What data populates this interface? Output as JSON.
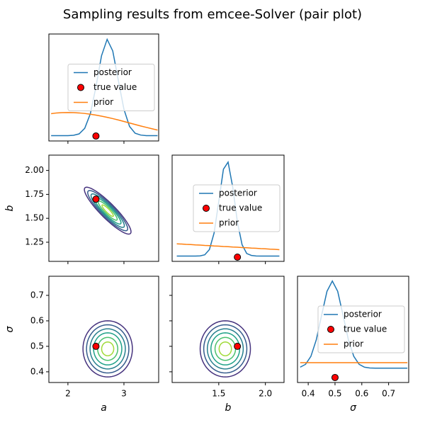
{
  "title": "Sampling results from emcee-Solver (pair plot)",
  "chart_data": [
    {
      "type": "density",
      "xlim": [
        1.66,
        3.62
      ],
      "ylim": [
        0,
        1
      ],
      "legend_loc": "center right",
      "x": [
        1.7,
        1.8,
        1.9,
        2.0,
        2.1,
        2.2,
        2.3,
        2.4,
        2.5,
        2.6,
        2.7,
        2.8,
        2.9,
        3.0,
        3.1,
        3.2,
        3.3,
        3.4,
        3.5,
        3.6
      ],
      "series": [
        {
          "name": "posterior",
          "color": "#1f77b4",
          "values": [
            0.05,
            0.05,
            0.05,
            0.05,
            0.053,
            0.066,
            0.118,
            0.254,
            0.505,
            0.797,
            0.95,
            0.842,
            0.566,
            0.296,
            0.136,
            0.072,
            0.055,
            0.05,
            0.05,
            0.05
          ]
        },
        {
          "name": "true value",
          "type": "scatter",
          "color": "#ff0000",
          "x": [
            2.5
          ],
          "values": [
            0.046
          ]
        },
        {
          "name": "prior",
          "color": "#ff7f0e",
          "values": [
            0.255,
            0.262,
            0.265,
            0.266,
            0.265,
            0.262,
            0.257,
            0.25,
            0.242,
            0.232,
            0.221,
            0.209,
            0.196,
            0.182,
            0.168,
            0.154,
            0.14,
            0.127,
            0.114,
            0.102
          ]
        }
      ]
    },
    {
      "type": "contour",
      "xlim": [
        1.66,
        3.62
      ],
      "ylim": [
        1.05,
        2.16
      ],
      "yticks": [
        1.25,
        {
          "value": 1.5,
          "label": "1.50"
        },
        1.75,
        {
          "value": 2,
          "label": "2.00"
        }
      ],
      "ylabel": "b",
      "mean": [
        2.71,
        1.58
      ],
      "sd": [
        0.17,
        0.1
      ],
      "rho": -0.9,
      "levels": [
        {
          "radius": 2.45,
          "color": "#46337e"
        },
        {
          "radius": 2.1,
          "color": "#365c8d"
        },
        {
          "radius": 1.75,
          "color": "#277f8e"
        },
        {
          "radius": 1.4,
          "color": "#1fa187"
        },
        {
          "radius": 1.0,
          "color": "#4ac16d"
        },
        {
          "radius": 0.6,
          "color": "#a0da39"
        }
      ],
      "points": {
        "x": [
          2.5
        ],
        "values": [
          1.7
        ],
        "color": "#ff0000"
      }
    },
    {
      "type": "density",
      "xlim": [
        1.0,
        2.2
      ],
      "ylim": [
        0,
        1
      ],
      "legend_loc": "center right",
      "x": [
        1.05,
        1.1,
        1.15,
        1.2,
        1.25,
        1.3,
        1.35,
        1.4,
        1.45,
        1.5,
        1.55,
        1.6,
        1.65,
        1.7,
        1.75,
        1.8,
        1.85,
        1.9,
        1.95,
        2.0,
        2.05,
        2.1,
        2.15
      ],
      "series": [
        {
          "name": "posterior",
          "color": "#1f77b4",
          "values": [
            0.05,
            0.05,
            0.05,
            0.05,
            0.05,
            0.052,
            0.062,
            0.112,
            0.267,
            0.563,
            0.867,
            0.934,
            0.698,
            0.371,
            0.157,
            0.074,
            0.056,
            0.051,
            0.05,
            0.05,
            0.05,
            0.05,
            0.05
          ]
        },
        {
          "name": "true value",
          "type": "scatter",
          "color": "#ff0000",
          "x": [
            1.7
          ],
          "values": [
            0.04
          ]
        },
        {
          "name": "prior",
          "color": "#ff7f0e",
          "values": [
            0.165,
            0.163,
            0.16,
            0.158,
            0.155,
            0.153,
            0.15,
            0.148,
            0.145,
            0.143,
            0.14,
            0.138,
            0.135,
            0.133,
            0.13,
            0.128,
            0.125,
            0.123,
            0.12,
            0.118,
            0.115,
            0.113,
            0.11
          ]
        }
      ]
    },
    {
      "type": "contour",
      "xlim": [
        1.66,
        3.62
      ],
      "ylim": [
        0.358,
        0.775
      ],
      "xticks": [
        2,
        3
      ],
      "yticks": [
        0.4,
        0.5,
        0.6,
        0.7
      ],
      "xlabel": "a",
      "ylabel": "σ",
      "mean": [
        2.71,
        0.49
      ],
      "sd": [
        0.18,
        0.045
      ],
      "rho": 0,
      "levels": [
        {
          "radius": 2.45,
          "color": "#46337e"
        },
        {
          "radius": 2.1,
          "color": "#365c8d"
        },
        {
          "radius": 1.75,
          "color": "#277f8e"
        },
        {
          "radius": 1.4,
          "color": "#1fa187"
        },
        {
          "radius": 1.0,
          "color": "#4ac16d"
        },
        {
          "radius": 0.6,
          "color": "#a0da39"
        }
      ],
      "points": {
        "x": [
          2.5
        ],
        "values": [
          0.5
        ],
        "color": "#ff0000"
      }
    },
    {
      "type": "contour",
      "xlim": [
        1.0,
        2.2
      ],
      "ylim": [
        0.358,
        0.775
      ],
      "xticks": [
        1.5,
        {
          "value": 2,
          "label": "2.0"
        }
      ],
      "xlabel": "b",
      "mean": [
        1.57,
        0.49
      ],
      "sd": [
        0.11,
        0.045
      ],
      "rho": 0,
      "levels": [
        {
          "radius": 2.45,
          "color": "#46337e"
        },
        {
          "radius": 2.1,
          "color": "#365c8d"
        },
        {
          "radius": 1.75,
          "color": "#277f8e"
        },
        {
          "radius": 1.4,
          "color": "#1fa187"
        },
        {
          "radius": 1.0,
          "color": "#4ac16d"
        },
        {
          "radius": 0.6,
          "color": "#a0da39"
        }
      ],
      "points": {
        "x": [
          1.7
        ],
        "values": [
          0.5
        ],
        "color": "#ff0000"
      }
    },
    {
      "type": "density",
      "xlim": [
        0.36,
        0.775
      ],
      "ylim": [
        0,
        1
      ],
      "legend_loc": "center right",
      "xticks": [
        0.4,
        0.5,
        0.6,
        0.7
      ],
      "xlabel": "σ",
      "x": [
        0.37,
        0.39,
        0.41,
        0.43,
        0.45,
        0.47,
        0.49,
        0.51,
        0.53,
        0.55,
        0.57,
        0.59,
        0.61,
        0.63,
        0.65,
        0.67,
        0.69,
        0.71,
        0.73,
        0.75,
        0.77
      ],
      "series": [
        {
          "name": "posterior",
          "color": "#1f77b4",
          "values": [
            0.144,
            0.171,
            0.246,
            0.401,
            0.633,
            0.858,
            0.955,
            0.858,
            0.633,
            0.401,
            0.246,
            0.171,
            0.144,
            0.137,
            0.135,
            0.135,
            0.135,
            0.135,
            0.135,
            0.135,
            0.135
          ]
        },
        {
          "name": "true value",
          "type": "scatter",
          "color": "#ff0000",
          "x": [
            0.5
          ],
          "values": [
            0.047
          ]
        },
        {
          "name": "prior",
          "color": "#ff7f0e",
          "values": [
            0.187,
            0.187,
            0.187,
            0.187,
            0.187,
            0.187,
            0.187,
            0.187,
            0.187,
            0.187,
            0.187,
            0.187,
            0.187,
            0.187,
            0.187,
            0.187,
            0.187,
            0.187,
            0.187,
            0.187,
            0.187
          ]
        }
      ]
    }
  ]
}
